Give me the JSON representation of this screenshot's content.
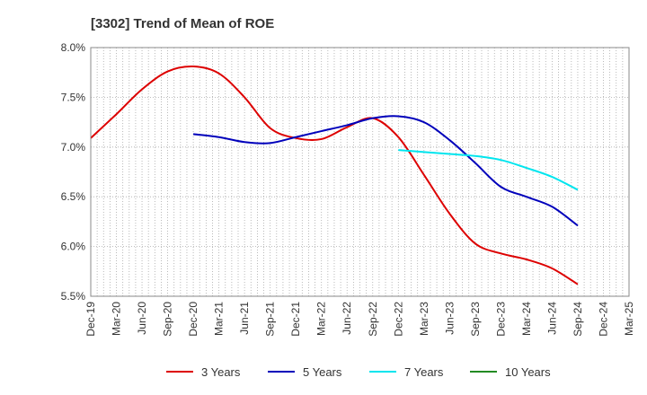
{
  "chart_data": {
    "type": "line",
    "title": "[3302]  Trend of Mean of ROE",
    "xlabel": "",
    "ylabel": "",
    "x_ticks": [
      "Dec-19",
      "Mar-20",
      "Jun-20",
      "Sep-20",
      "Dec-20",
      "Mar-21",
      "Jun-21",
      "Sep-21",
      "Dec-21",
      "Mar-22",
      "Jun-22",
      "Sep-22",
      "Dec-22",
      "Mar-23",
      "Jun-23",
      "Sep-23",
      "Dec-23",
      "Mar-24",
      "Jun-24",
      "Sep-24",
      "Dec-24",
      "Mar-25"
    ],
    "y_ticks": [
      "5.5%",
      "6.0%",
      "6.5%",
      "7.0%",
      "7.5%",
      "8.0%"
    ],
    "ylim": [
      5.5,
      8.0
    ],
    "grid": true,
    "legend_position": "bottom",
    "series": [
      {
        "name": "3 Years",
        "color": "#dd0000",
        "values": [
          7.09,
          7.33,
          7.58,
          7.76,
          7.81,
          7.74,
          7.5,
          7.19,
          7.09,
          7.08,
          7.2,
          7.29,
          7.1,
          6.72,
          6.33,
          6.03,
          5.93,
          5.87,
          5.78,
          5.62,
          null,
          null
        ]
      },
      {
        "name": "5 Years",
        "color": "#0000bb",
        "values": [
          null,
          null,
          null,
          null,
          7.13,
          7.1,
          7.05,
          7.04,
          7.1,
          7.16,
          7.22,
          7.29,
          7.31,
          7.25,
          7.07,
          6.84,
          6.6,
          6.5,
          6.4,
          6.21,
          null,
          null
        ],
        "values_aligned_note": ""
      },
      {
        "name": "7 Years",
        "color": "#00e5ee",
        "values": [
          null,
          null,
          null,
          null,
          null,
          null,
          null,
          null,
          null,
          null,
          null,
          null,
          6.97,
          6.95,
          6.93,
          6.91,
          6.87,
          6.79,
          6.7,
          6.57,
          null,
          null
        ]
      },
      {
        "name": "10 Years",
        "color": "#228b22",
        "values": []
      }
    ]
  }
}
